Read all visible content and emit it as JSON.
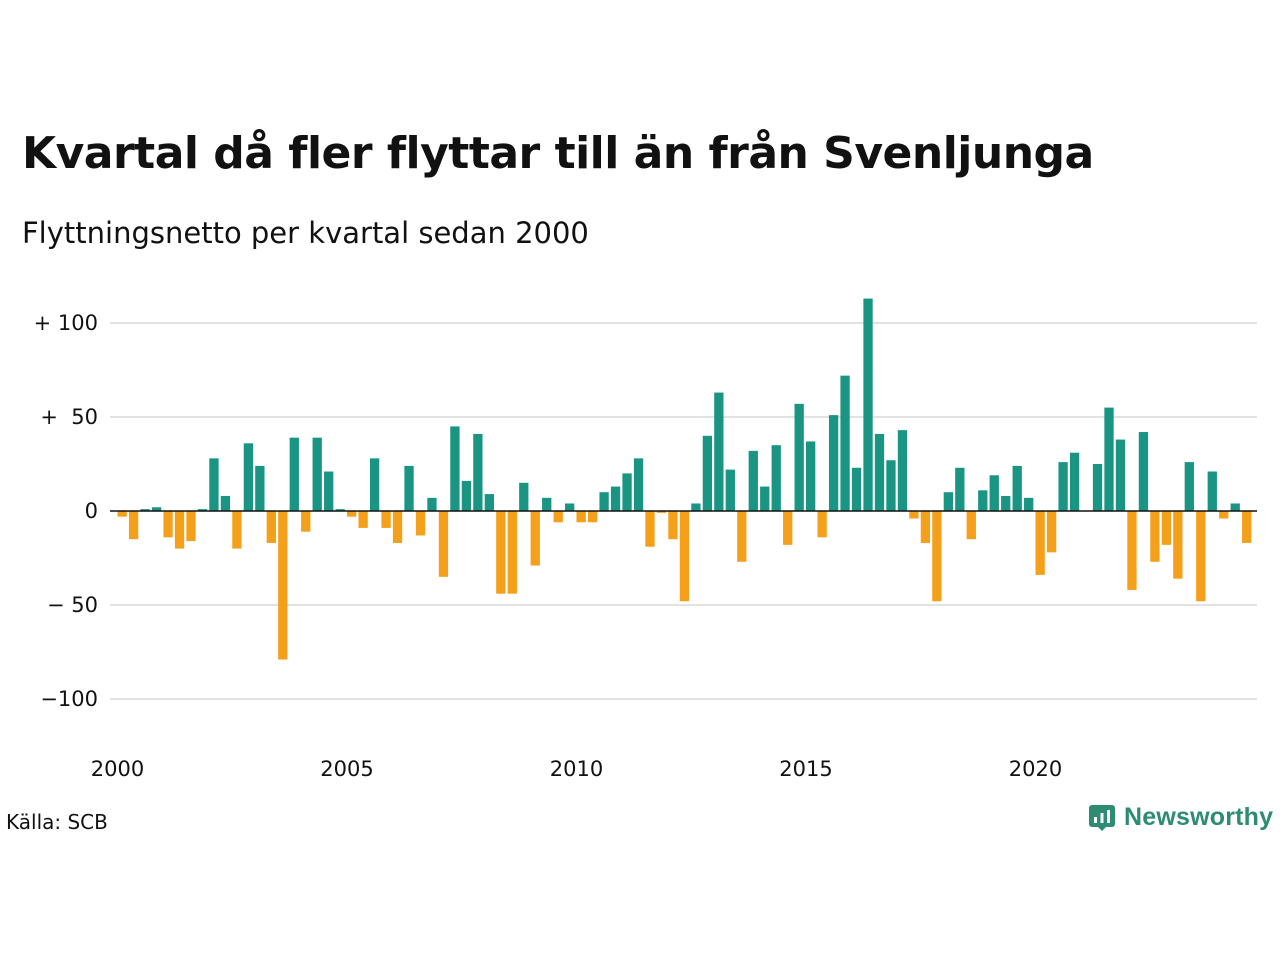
{
  "title": "Kvartal då fler flyttar till än från Svenljunga",
  "subtitle": "Flyttningsnetto per kvartal sedan 2000",
  "source": "Källa: SCB",
  "brand": {
    "name": "Newsworthy",
    "color": "#2e8b74"
  },
  "colors": {
    "positive": "#1a9583",
    "negative": "#f5a01a"
  },
  "chart_data": {
    "type": "bar",
    "x_start": "2000",
    "x_ticks": [
      "2000",
      "2005",
      "2010",
      "2015",
      "2020"
    ],
    "y_ticks": [
      {
        "value": 100,
        "label": "+ 100"
      },
      {
        "value": 50,
        "label": "+  50"
      },
      {
        "value": 0,
        "label": "0"
      },
      {
        "value": -50,
        "label": "− 50"
      },
      {
        "value": -100,
        "label": "−100"
      }
    ],
    "ylim": [
      -120,
      113
    ],
    "grid": true,
    "values": [
      -3,
      -15,
      1,
      2,
      -14,
      -20,
      -16,
      1,
      28,
      8,
      -20,
      36,
      24,
      -17,
      -79,
      39,
      -11,
      39,
      21,
      1,
      -3,
      -9,
      28,
      -9,
      -17,
      24,
      -13,
      7,
      -35,
      45,
      16,
      41,
      9,
      -44,
      -44,
      15,
      -29,
      7,
      -6,
      4,
      -6,
      -6,
      10,
      13,
      20,
      28,
      -19,
      -1,
      -15,
      -48,
      4,
      40,
      63,
      22,
      -27,
      32,
      13,
      35,
      -18,
      57,
      37,
      -14,
      51,
      72,
      23,
      113,
      41,
      27,
      43,
      -4,
      -17,
      -48,
      10,
      23,
      -15,
      11,
      19,
      8,
      24,
      7,
      -34,
      -22,
      26,
      31,
      0,
      25,
      55,
      38,
      -42,
      42,
      -27,
      -18,
      -36,
      26,
      -48,
      21,
      -4,
      4,
      -17
    ]
  }
}
